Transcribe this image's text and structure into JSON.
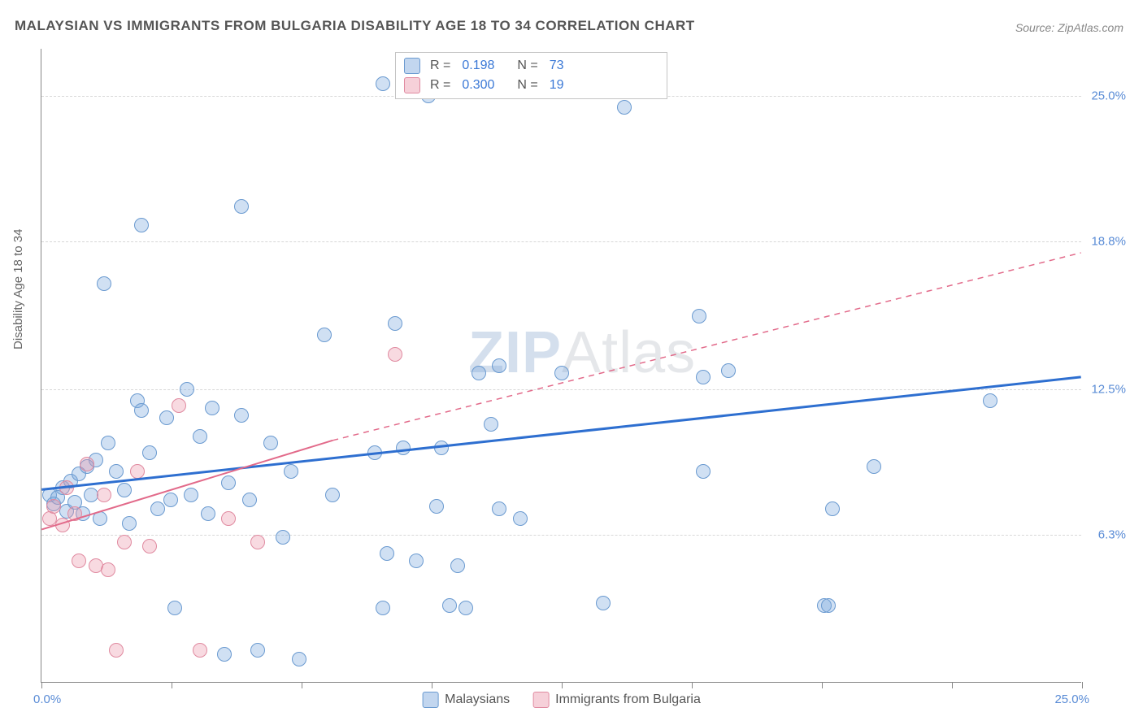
{
  "title": "MALAYSIAN VS IMMIGRANTS FROM BULGARIA DISABILITY AGE 18 TO 34 CORRELATION CHART",
  "source": "Source: ZipAtlas.com",
  "y_axis_title": "Disability Age 18 to 34",
  "watermark_a": "ZIP",
  "watermark_b": "Atlas",
  "chart": {
    "type": "scatter",
    "xlim": [
      0,
      25
    ],
    "ylim": [
      0,
      27
    ],
    "x_tick_positions": [
      0,
      3.125,
      6.25,
      9.375,
      12.5,
      15.625,
      18.75,
      21.875,
      25
    ],
    "x_labels": {
      "min": "0.0%",
      "max": "25.0%"
    },
    "y_gridlines": [
      6.3,
      12.5,
      18.8,
      25.0
    ],
    "y_labels": [
      "6.3%",
      "12.5%",
      "18.8%",
      "25.0%"
    ],
    "background_color": "#ffffff",
    "grid_color": "#d8d8d8",
    "axis_color": "#888888",
    "series": [
      {
        "name": "Malaysians",
        "color_fill": "rgba(120,165,220,0.35)",
        "color_stroke": "#6a9ad0",
        "trend_color": "#2e6fd0",
        "trend_width": 3,
        "R": "0.198",
        "N": "73",
        "trend": {
          "x1": 0,
          "y1": 8.2,
          "x2": 25,
          "y2": 13.0
        },
        "points": [
          [
            0.2,
            8.0
          ],
          [
            0.3,
            7.6
          ],
          [
            0.4,
            7.9
          ],
          [
            0.5,
            8.3
          ],
          [
            0.6,
            7.3
          ],
          [
            0.7,
            8.6
          ],
          [
            0.8,
            7.7
          ],
          [
            0.9,
            8.9
          ],
          [
            1.0,
            7.2
          ],
          [
            1.1,
            9.2
          ],
          [
            1.2,
            8.0
          ],
          [
            1.3,
            9.5
          ],
          [
            1.4,
            7.0
          ],
          [
            1.6,
            10.2
          ],
          [
            1.5,
            17.0
          ],
          [
            1.8,
            9.0
          ],
          [
            2.0,
            8.2
          ],
          [
            2.1,
            6.8
          ],
          [
            2.3,
            12.0
          ],
          [
            2.4,
            11.6
          ],
          [
            2.4,
            19.5
          ],
          [
            2.6,
            9.8
          ],
          [
            2.8,
            7.4
          ],
          [
            3.0,
            11.3
          ],
          [
            3.1,
            7.8
          ],
          [
            3.2,
            3.2
          ],
          [
            3.5,
            12.5
          ],
          [
            3.6,
            8.0
          ],
          [
            3.8,
            10.5
          ],
          [
            4.0,
            7.2
          ],
          [
            4.1,
            11.7
          ],
          [
            4.4,
            1.2
          ],
          [
            4.5,
            8.5
          ],
          [
            4.8,
            11.4
          ],
          [
            4.8,
            20.3
          ],
          [
            5.0,
            7.8
          ],
          [
            5.2,
            1.4
          ],
          [
            5.5,
            10.2
          ],
          [
            5.8,
            6.2
          ],
          [
            6.0,
            9.0
          ],
          [
            6.2,
            1.0
          ],
          [
            6.8,
            14.8
          ],
          [
            7.0,
            8.0
          ],
          [
            8.0,
            9.8
          ],
          [
            8.2,
            3.2
          ],
          [
            8.2,
            25.5
          ],
          [
            8.3,
            5.5
          ],
          [
            8.5,
            15.3
          ],
          [
            8.7,
            10.0
          ],
          [
            9.0,
            5.2
          ],
          [
            9.3,
            25.0
          ],
          [
            9.5,
            7.5
          ],
          [
            9.6,
            10.0
          ],
          [
            9.8,
            3.3
          ],
          [
            10.0,
            5.0
          ],
          [
            10.2,
            3.2
          ],
          [
            10.5,
            13.2
          ],
          [
            10.8,
            11.0
          ],
          [
            11.0,
            7.4
          ],
          [
            11.0,
            13.5
          ],
          [
            11.5,
            7.0
          ],
          [
            12.5,
            13.2
          ],
          [
            13.5,
            3.4
          ],
          [
            14.0,
            24.5
          ],
          [
            15.8,
            15.6
          ],
          [
            15.9,
            13.0
          ],
          [
            15.9,
            9.0
          ],
          [
            16.5,
            13.3
          ],
          [
            18.8,
            3.3
          ],
          [
            18.9,
            3.3
          ],
          [
            19.0,
            7.4
          ],
          [
            20.0,
            9.2
          ],
          [
            22.8,
            12.0
          ]
        ]
      },
      {
        "name": "Immigrants from Bulgaria",
        "color_fill": "rgba(235,150,170,0.35)",
        "color_stroke": "#e08aa0",
        "trend_color": "#e26a8a",
        "trend_width": 2,
        "R": "0.300",
        "N": "19",
        "trend": {
          "x1": 0,
          "y1": 6.5,
          "x2": 7.0,
          "y2": 10.3
        },
        "trend_dash": {
          "x1": 7.0,
          "y1": 10.3,
          "x2": 25,
          "y2": 18.3
        },
        "points": [
          [
            0.2,
            7.0
          ],
          [
            0.3,
            7.5
          ],
          [
            0.5,
            6.7
          ],
          [
            0.6,
            8.3
          ],
          [
            0.8,
            7.2
          ],
          [
            0.9,
            5.2
          ],
          [
            1.1,
            9.3
          ],
          [
            1.3,
            5.0
          ],
          [
            1.5,
            8.0
          ],
          [
            1.6,
            4.8
          ],
          [
            1.8,
            1.4
          ],
          [
            2.0,
            6.0
          ],
          [
            2.3,
            9.0
          ],
          [
            2.6,
            5.8
          ],
          [
            3.3,
            11.8
          ],
          [
            3.8,
            1.4
          ],
          [
            4.5,
            7.0
          ],
          [
            5.2,
            6.0
          ],
          [
            8.5,
            14.0
          ]
        ]
      }
    ]
  },
  "legend": {
    "series1": "Malaysians",
    "series2": "Immigrants from Bulgaria"
  },
  "infobox": {
    "r_label": "R =",
    "n_label": "N ="
  }
}
